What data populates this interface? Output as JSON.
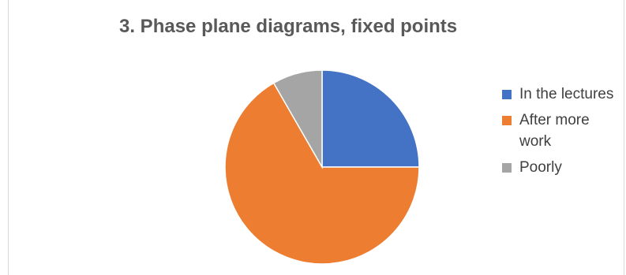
{
  "chart_data": {
    "type": "pie",
    "title": "3. Phase plane diagrams, fixed points",
    "categories": [
      "In the lectures",
      "After more work",
      "Poorly"
    ],
    "values": [
      25,
      66.7,
      8.3
    ],
    "colors": [
      "#4472C4",
      "#ED7D31",
      "#A5A5A5"
    ],
    "start_angle": "12 o'clock",
    "direction": "clockwise",
    "legend": {
      "placement": "right",
      "entries": [
        "In the lectures",
        "After more work",
        "Poorly"
      ]
    }
  }
}
